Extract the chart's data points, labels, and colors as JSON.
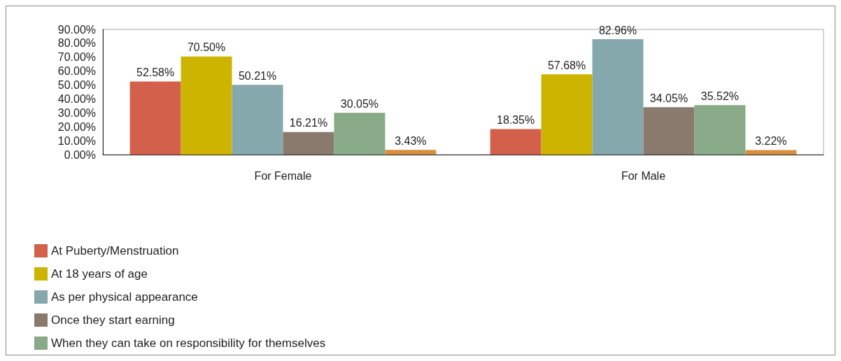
{
  "chart_data": {
    "type": "bar",
    "categories": [
      "For Female",
      "For Male"
    ],
    "series": [
      {
        "name": "At Puberty/Menstruation",
        "color": "#d2604a",
        "values": [
          52.58,
          18.35
        ],
        "value_labels": [
          "52.58%",
          "18.35%"
        ]
      },
      {
        "name": "At 18 years of age",
        "color": "#ccb400",
        "values": [
          70.5,
          57.68
        ],
        "value_labels": [
          "70.50%",
          "57.68%"
        ]
      },
      {
        "name": "As per physical appearance",
        "color": "#84a8ac",
        "values": [
          50.21,
          82.96
        ],
        "value_labels": [
          "50.21%",
          "82.96%"
        ]
      },
      {
        "name": "Once they start earning",
        "color": "#8a7a6e",
        "values": [
          16.21,
          34.05
        ],
        "value_labels": [
          "16.21%",
          "34.05%"
        ]
      },
      {
        "name": "When they can take on responsibility for themselves",
        "color": "#88aa88",
        "values": [
          30.05,
          35.52
        ],
        "value_labels": [
          "30.05%",
          "35.52%"
        ]
      },
      {
        "color": "#d98e3e",
        "values": [
          3.43,
          3.22
        ],
        "value_labels": [
          "3.43%",
          "3.22%"
        ]
      }
    ],
    "ylim": [
      0,
      90
    ],
    "yticks": [
      {
        "value": 0,
        "label": "0.00%"
      },
      {
        "value": 10,
        "label": "10.00%"
      },
      {
        "value": 20,
        "label": "20.00%"
      },
      {
        "value": 30,
        "label": "30.00%"
      },
      {
        "value": 40,
        "label": "40.00%"
      },
      {
        "value": 50,
        "label": "50.00%"
      },
      {
        "value": 60,
        "label": "60.00%"
      },
      {
        "value": 70,
        "label": "70.00%"
      },
      {
        "value": 80,
        "label": "80.00%"
      },
      {
        "value": 90,
        "label": "90.00%"
      }
    ],
    "grid": false,
    "legend": "bottom left"
  }
}
